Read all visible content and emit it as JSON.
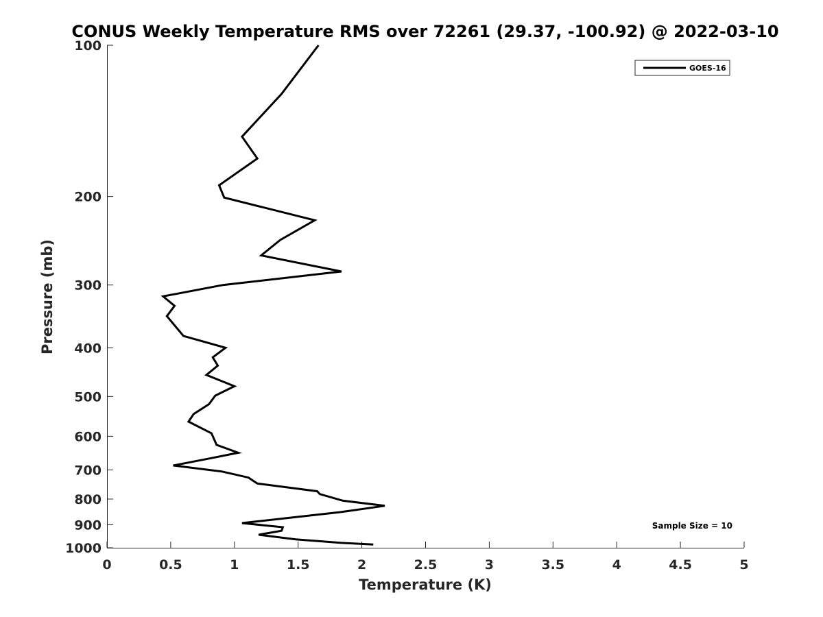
{
  "chart_data": {
    "type": "line",
    "title": "CONUS Weekly Temperature RMS over 72261 (29.37, -100.92) @ 2022-03-10",
    "xlabel": "Temperature (K)",
    "ylabel": "Pressure (mb)",
    "xlim": [
      0,
      5
    ],
    "ylim": [
      100,
      1000
    ],
    "y_scale": "log",
    "y_reversed": true,
    "grid": false,
    "legend_position": "top-right",
    "x_ticks": [
      "0",
      "0.5",
      "1",
      "1.5",
      "2",
      "2.5",
      "3",
      "3.5",
      "4",
      "4.5",
      "5"
    ],
    "y_ticks": [
      "100",
      "200",
      "300",
      "400",
      "500",
      "600",
      "700",
      "800",
      "900",
      "1000"
    ],
    "series": [
      {
        "name": "GOES-16",
        "color": "#000000",
        "points": [
          [
            1.66,
            100
          ],
          [
            1.37,
            125
          ],
          [
            1.06,
            152
          ],
          [
            1.18,
            168
          ],
          [
            0.88,
            190
          ],
          [
            0.92,
            201
          ],
          [
            1.63,
            223
          ],
          [
            1.36,
            244
          ],
          [
            1.21,
            262
          ],
          [
            1.84,
            282
          ],
          [
            0.91,
            300
          ],
          [
            0.44,
            316
          ],
          [
            0.53,
            330
          ],
          [
            0.47,
            346
          ],
          [
            0.6,
            379
          ],
          [
            0.93,
            400
          ],
          [
            0.83,
            418
          ],
          [
            0.87,
            434
          ],
          [
            0.78,
            453
          ],
          [
            1.0,
            477
          ],
          [
            0.85,
            498
          ],
          [
            0.8,
            518
          ],
          [
            0.68,
            542
          ],
          [
            0.64,
            561
          ],
          [
            0.82,
            592
          ],
          [
            0.86,
            624
          ],
          [
            1.03,
            647
          ],
          [
            0.82,
            663
          ],
          [
            0.52,
            686
          ],
          [
            0.9,
            705
          ],
          [
            1.11,
            725
          ],
          [
            1.18,
            745
          ],
          [
            1.65,
            772
          ],
          [
            1.67,
            782
          ],
          [
            1.85,
            806
          ],
          [
            2.18,
            825
          ],
          [
            1.82,
            850
          ],
          [
            1.06,
            893
          ],
          [
            1.38,
            910
          ],
          [
            1.37,
            925
          ],
          [
            1.19,
            942
          ],
          [
            1.48,
            962
          ],
          [
            1.84,
            978
          ],
          [
            2.09,
            985
          ]
        ]
      }
    ],
    "annotations": [
      "Sample Size = 10"
    ]
  }
}
